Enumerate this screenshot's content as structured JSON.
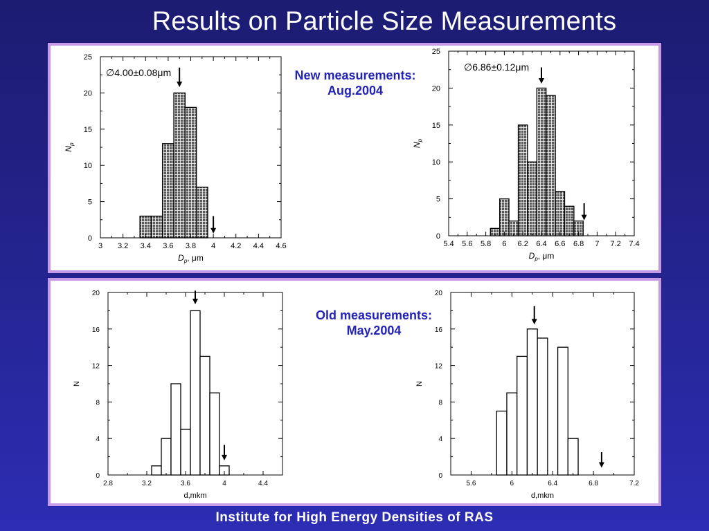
{
  "slide": {
    "title": "Results on Particle Size Measurements",
    "footer": "Institute for High Energy Densities of RAS"
  },
  "notes": {
    "new_line1": "New measurements:",
    "new_line2": "Aug.2004",
    "old_line1": "Old measurements:",
    "old_line2": "May.2004"
  },
  "colors": {
    "panel_border": "#c79ae8",
    "note_text": "#2323b8",
    "bar_hatched_fill": "#5a5a5a",
    "bar_plain_fill": "#ffffff"
  },
  "chart_data": [
    {
      "type": "bar",
      "style": "hatched",
      "annotation": "∅4.00±0.08μm",
      "xlabel": "D_p, μm",
      "ylabel": "N_p",
      "xlim": [
        3,
        4.6
      ],
      "ylim": [
        0,
        25
      ],
      "xticks": [
        3,
        3.2,
        3.4,
        3.6,
        3.8,
        4,
        4.2,
        4.4,
        4.6
      ],
      "xtick_labels": [
        "3",
        "3.2",
        "3.4",
        "3.6",
        "3.8",
        "4",
        "4.2",
        "4.4",
        "4.6"
      ],
      "yticks": [
        0,
        5,
        10,
        15,
        20,
        25
      ],
      "ytick_labels": [
        "0",
        "5",
        "10",
        "15",
        "20",
        "25"
      ],
      "bin_width": 0.1,
      "bins": [
        {
          "x0": 3.35,
          "value": 3
        },
        {
          "x0": 3.45,
          "value": 3
        },
        {
          "x0": 3.55,
          "value": 13
        },
        {
          "x0": 3.65,
          "value": 20
        },
        {
          "x0": 3.75,
          "value": 18
        },
        {
          "x0": 3.85,
          "value": 7
        }
      ],
      "arrows": [
        {
          "x": 3.7,
          "y_from": 23.5,
          "y_to": 20.8
        },
        {
          "x": 4.0,
          "y_from": 3.0,
          "y_to": 0.6
        }
      ]
    },
    {
      "type": "bar",
      "style": "hatched",
      "annotation": "∅6.86±0.12μm",
      "xlabel": "D_p, μm",
      "ylabel": "N_p",
      "xlim": [
        5.4,
        7.4
      ],
      "ylim": [
        0,
        25
      ],
      "xticks": [
        5.4,
        5.6,
        5.8,
        6,
        6.2,
        6.4,
        6.6,
        6.8,
        7,
        7.2,
        7.4
      ],
      "xtick_labels": [
        "5.4",
        "5.6",
        "5.8",
        "6",
        "6.2",
        "6.4",
        "6.6",
        "6.8",
        "7",
        "7.2",
        "7.4"
      ],
      "yticks": [
        0,
        5,
        10,
        15,
        20,
        25
      ],
      "ytick_labels": [
        "0",
        "5",
        "10",
        "15",
        "20",
        "25"
      ],
      "bin_width": 0.1,
      "bins": [
        {
          "x0": 5.85,
          "value": 1
        },
        {
          "x0": 5.95,
          "value": 5
        },
        {
          "x0": 6.05,
          "value": 2
        },
        {
          "x0": 6.15,
          "value": 15
        },
        {
          "x0": 6.25,
          "value": 10
        },
        {
          "x0": 6.35,
          "value": 20
        },
        {
          "x0": 6.45,
          "value": 19
        },
        {
          "x0": 6.55,
          "value": 6
        },
        {
          "x0": 6.65,
          "value": 4
        },
        {
          "x0": 6.75,
          "value": 2
        }
      ],
      "arrows": [
        {
          "x": 6.4,
          "y_from": 22.8,
          "y_to": 20.6
        },
        {
          "x": 6.86,
          "y_from": 4.4,
          "y_to": 2.1
        }
      ]
    },
    {
      "type": "bar",
      "style": "plain",
      "annotation": "",
      "xlabel": "d,mkm",
      "ylabel": "N",
      "xlim": [
        2.8,
        4.6
      ],
      "ylim": [
        0,
        20
      ],
      "xticks": [
        2.8,
        3.2,
        3.6,
        4,
        4.4
      ],
      "xtick_labels": [
        "2.8",
        "3.2",
        "3.6",
        "4",
        "4.4"
      ],
      "yticks": [
        0,
        4,
        8,
        12,
        16,
        20
      ],
      "ytick_labels": [
        "0",
        "4",
        "8",
        "12",
        "16",
        "20"
      ],
      "bin_width": 0.1,
      "bins": [
        {
          "x0": 3.25,
          "value": 1
        },
        {
          "x0": 3.35,
          "value": 4
        },
        {
          "x0": 3.45,
          "value": 10
        },
        {
          "x0": 3.55,
          "value": 5
        },
        {
          "x0": 3.65,
          "value": 18
        },
        {
          "x0": 3.75,
          "value": 13
        },
        {
          "x0": 3.85,
          "value": 9
        },
        {
          "x0": 3.95,
          "value": 1
        }
      ],
      "arrows": [
        {
          "x": 3.7,
          "y_from": 20.2,
          "y_to": 18.7
        },
        {
          "x": 4.0,
          "y_from": 3.3,
          "y_to": 1.6
        }
      ]
    },
    {
      "type": "bar",
      "style": "plain",
      "annotation": "",
      "xlabel": "d,mkm",
      "ylabel": "N",
      "xlim": [
        5.4,
        7.2
      ],
      "ylim": [
        0,
        20
      ],
      "xticks": [
        5.6,
        6,
        6.4,
        6.8,
        7.2
      ],
      "xtick_labels": [
        "5.6",
        "6",
        "6.4",
        "6.8",
        "7.2"
      ],
      "yticks": [
        0,
        4,
        8,
        12,
        16,
        20
      ],
      "ytick_labels": [
        "0",
        "4",
        "8",
        "12",
        "16",
        "20"
      ],
      "bin_width": 0.1,
      "bins": [
        {
          "x0": 5.85,
          "value": 7
        },
        {
          "x0": 5.95,
          "value": 9
        },
        {
          "x0": 6.05,
          "value": 13
        },
        {
          "x0": 6.15,
          "value": 16
        },
        {
          "x0": 6.25,
          "value": 15
        },
        {
          "x0": 6.45,
          "value": 14
        },
        {
          "x0": 6.55,
          "value": 4
        }
      ],
      "arrows": [
        {
          "x": 6.22,
          "y_from": 18.5,
          "y_to": 16.5
        },
        {
          "x": 6.88,
          "y_from": 2.5,
          "y_to": 0.8
        }
      ]
    }
  ]
}
